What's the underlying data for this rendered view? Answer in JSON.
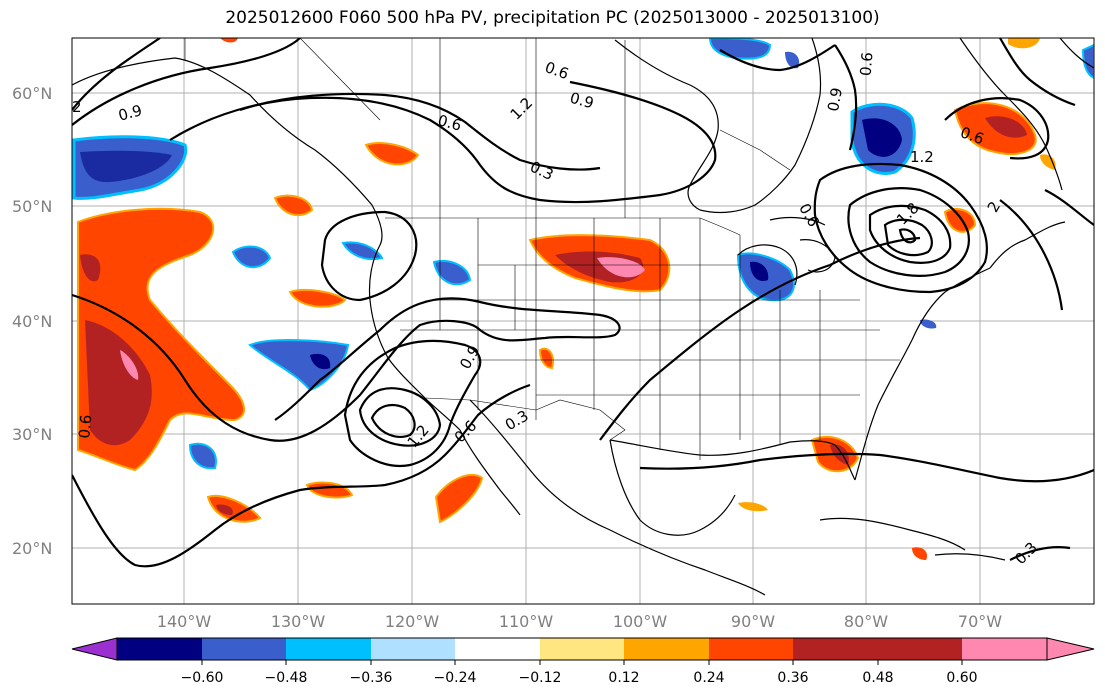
{
  "title": "2025012600 F060 500 hPa PV, precipitation PC (2025013000 - 2025013100)",
  "map": {
    "lat_labels": [
      "60°N",
      "50°N",
      "40°N",
      "30°N",
      "20°N"
    ],
    "lon_labels": [
      "140°W",
      "130°W",
      "120°W",
      "110°W",
      "100°W",
      "90°W",
      "80°W",
      "70°W"
    ],
    "contour_labels": [
      "0.9",
      "2",
      "0.6",
      "0.3",
      "1.2",
      "0.9",
      "0.6",
      "0.9",
      "0.6",
      "0.6",
      "1.2",
      "1.8",
      "2",
      "0.6",
      "0.9",
      "1.2",
      "0.6",
      "0.3",
      "0.6",
      "0.3",
      "1.8"
    ],
    "grid": true
  },
  "colorbar": {
    "ticks": [
      "−0.60",
      "−0.48",
      "−0.36",
      "−0.24",
      "−0.12",
      "0.12",
      "0.24",
      "0.36",
      "0.48",
      "0.60"
    ],
    "colors": [
      "#9b30d0",
      "#000080",
      "#3a5fcd",
      "#00bfff",
      "#b0e0ff",
      "#ffffff",
      "#ffe680",
      "#ffa500",
      "#ff4500",
      "#b22222",
      "#ff88b0"
    ]
  }
}
